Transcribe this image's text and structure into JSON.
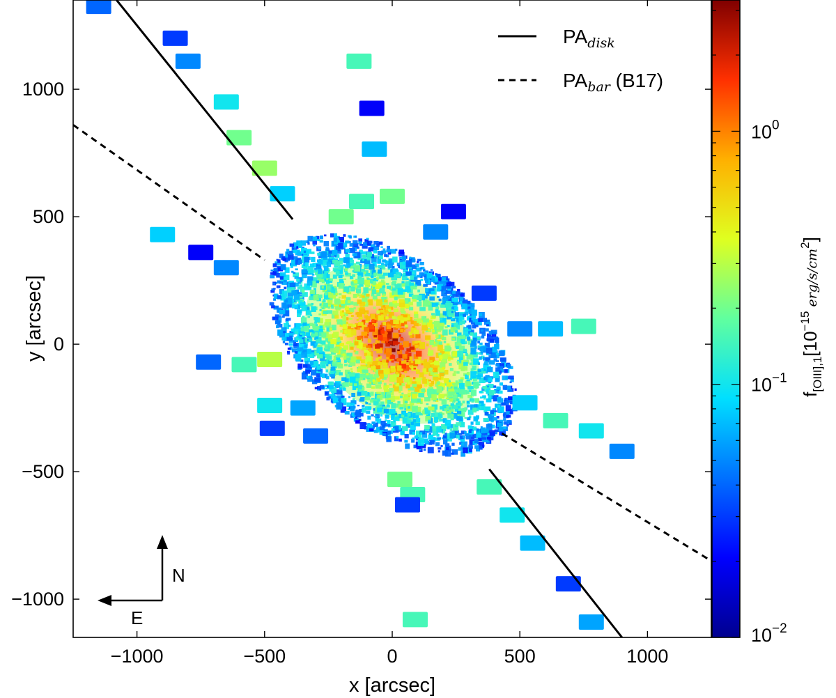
{
  "chart_data": {
    "type": "scatter",
    "title": "",
    "xlabel": "x [arcsec]",
    "ylabel": "y [arcsec]",
    "xlim": [
      -1250,
      1250
    ],
    "ylim": [
      -1150,
      1350
    ],
    "xticks": [
      -1000,
      -500,
      0,
      500,
      1000
    ],
    "xtick_labels": [
      "−1000",
      "−500",
      "0",
      "500",
      "1000"
    ],
    "yticks": [
      -1000,
      -500,
      0,
      500,
      1000
    ],
    "ytick_labels": [
      "−1000",
      "−500",
      "0",
      "500",
      "1000"
    ],
    "colorbar": {
      "label_main": "f",
      "label_sub": "[OIII],1",
      "label_units": "[10",
      "label_exp": "−15",
      "label_units2": " erg/s/cm",
      "label_exp2": "2",
      "label_close": "]",
      "scale": "log",
      "range": [
        0.01,
        3.3
      ],
      "colormap": "jet",
      "ticks": [
        {
          "value": 0.01,
          "base": "10",
          "exp": "-2"
        },
        {
          "value": 0.1,
          "base": "10",
          "exp": "-1"
        },
        {
          "value": 1,
          "base": "10",
          "exp": "0"
        }
      ]
    },
    "lines": [
      {
        "name": "PA_disk",
        "style": "solid",
        "segments": [
          [
            [
              -1080,
              1350
            ],
            [
              -390,
              490
            ]
          ],
          [
            [
              380,
              -490
            ],
            [
              900,
              -1150
            ]
          ]
        ]
      },
      {
        "name": "PA_bar (B17)",
        "style": "dashed",
        "segments": [
          [
            [
              -1250,
              860
            ],
            [
              -500,
              330
            ]
          ],
          [
            [
              430,
              -350
            ],
            [
              1250,
              -850
            ]
          ]
        ]
      }
    ],
    "legend": {
      "placement": "top-right",
      "entries": [
        {
          "label": "PA",
          "sub": "disk",
          "suffix": "",
          "style": "solid"
        },
        {
          "label": "PA",
          "sub": "bar",
          "suffix": " (B17)",
          "style": "dashed"
        }
      ]
    },
    "compass": {
      "north": "N",
      "east": "E",
      "placement": "bottom-left"
    },
    "central_emission": {
      "center": [
        0,
        0
      ],
      "peak_flux": 3.0,
      "description_units": "arcsec"
    },
    "pointings": [
      {
        "x": -1150,
        "y": 1325,
        "f": 0.04
      },
      {
        "x": -850,
        "y": 1200,
        "f": 0.03
      },
      {
        "x": -800,
        "y": 1110,
        "f": 0.05
      },
      {
        "x": -650,
        "y": 950,
        "f": 0.1
      },
      {
        "x": -600,
        "y": 810,
        "f": 0.2
      },
      {
        "x": -500,
        "y": 690,
        "f": 0.25
      },
      {
        "x": -430,
        "y": 590,
        "f": 0.08
      },
      {
        "x": -130,
        "y": 1110,
        "f": 0.15
      },
      {
        "x": -80,
        "y": 925,
        "f": 0.02
      },
      {
        "x": -70,
        "y": 765,
        "f": 0.07
      },
      {
        "x": -900,
        "y": 430,
        "f": 0.08
      },
      {
        "x": -750,
        "y": 360,
        "f": 0.02
      },
      {
        "x": -650,
        "y": 300,
        "f": 0.05
      },
      {
        "x": 240,
        "y": 520,
        "f": 0.02
      },
      {
        "x": 170,
        "y": 440,
        "f": 0.05
      },
      {
        "x": 360,
        "y": 200,
        "f": 0.03
      },
      {
        "x": 500,
        "y": 60,
        "f": 0.05
      },
      {
        "x": 620,
        "y": 60,
        "f": 0.07
      },
      {
        "x": 750,
        "y": 70,
        "f": 0.15
      },
      {
        "x": -720,
        "y": -70,
        "f": 0.04
      },
      {
        "x": -580,
        "y": -80,
        "f": 0.15
      },
      {
        "x": -480,
        "y": -60,
        "f": 0.3
      },
      {
        "x": -480,
        "y": -240,
        "f": 0.1
      },
      {
        "x": -470,
        "y": -330,
        "f": 0.03
      },
      {
        "x": -300,
        "y": -360,
        "f": 0.04
      },
      {
        "x": -350,
        "y": -250,
        "f": 0.06
      },
      {
        "x": 520,
        "y": -230,
        "f": 0.08
      },
      {
        "x": 640,
        "y": -300,
        "f": 0.15
      },
      {
        "x": 780,
        "y": -340,
        "f": 0.1
      },
      {
        "x": 900,
        "y": -420,
        "f": 0.05
      },
      {
        "x": 30,
        "y": -530,
        "f": 0.2
      },
      {
        "x": 80,
        "y": -590,
        "f": 0.15
      },
      {
        "x": 60,
        "y": -630,
        "f": 0.03
      },
      {
        "x": 380,
        "y": -560,
        "f": 0.15
      },
      {
        "x": 470,
        "y": -670,
        "f": 0.1
      },
      {
        "x": 550,
        "y": -780,
        "f": 0.07
      },
      {
        "x": 690,
        "y": -940,
        "f": 0.03
      },
      {
        "x": 780,
        "y": -1090,
        "f": 0.06
      },
      {
        "x": 90,
        "y": -1080,
        "f": 0.15
      },
      {
        "x": -120,
        "y": 560,
        "f": 0.15
      },
      {
        "x": 0,
        "y": 580,
        "f": 0.2
      },
      {
        "x": -200,
        "y": 500,
        "f": 0.2
      }
    ]
  }
}
